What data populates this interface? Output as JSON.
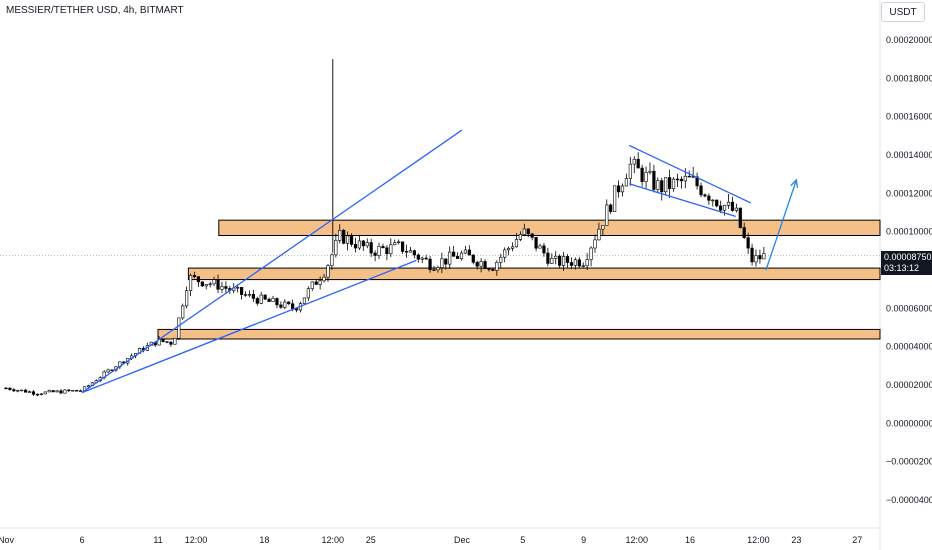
{
  "title": "MESSIER/TETHER USD, 4h, BITMART",
  "currency_label": "USDT",
  "current_price": "0.00008750",
  "countdown": "03:13:12",
  "chart_data": {
    "type": "candlestick",
    "title": "MESSIER/TETHER USD, 4h, BITMART",
    "y_ticks": [
      "0.00020000",
      "0.00018000",
      "0.00016000",
      "0.00014000",
      "0.00012000",
      "0.00010000",
      "0.00008000",
      "0.00006000",
      "0.00004000",
      "0.00002000",
      "0.00000000",
      "−0.00002000",
      "−0.00004000"
    ],
    "y_tick_values": [
      0.0002,
      0.00018,
      0.00016,
      0.00014,
      0.00012,
      0.0001,
      8e-05,
      6e-05,
      4e-05,
      2e-05,
      0,
      -2e-05,
      -4e-05
    ],
    "ylim": [
      -4e-05,
      0.0002
    ],
    "x_ticks": [
      "Nov",
      "6",
      "11",
      "12:00",
      "18",
      "12:00",
      "25",
      "Dec",
      "5",
      "9",
      "12:00",
      "16",
      "12:00",
      "23",
      "27"
    ],
    "x_tick_dates": [
      "2024-11-01",
      "2024-11-06",
      "2024-11-11",
      "2024-11-13T12:00",
      "2024-11-18",
      "2024-11-22T12:00",
      "2024-11-25",
      "2024-12-01",
      "2024-12-05",
      "2024-12-09",
      "2024-12-12T12:00",
      "2024-12-16",
      "2024-12-20T12:00",
      "2024-12-23",
      "2024-12-27"
    ],
    "price_path": [
      [
        "2024-11-01",
        1.84e-05
      ],
      [
        "2024-11-03",
        1.58e-05
      ],
      [
        "2024-11-06",
        1.72e-05
      ],
      [
        "2024-11-08",
        2.9e-05
      ],
      [
        "2024-11-10",
        3.9e-05
      ],
      [
        "2024-11-11",
        4.3e-05
      ],
      [
        "2024-11-12",
        4.2e-05
      ],
      [
        "2024-11-13",
        7.6e-05
      ],
      [
        "2024-11-15",
        7.2e-05
      ],
      [
        "2024-11-17",
        6.6e-05
      ],
      [
        "2024-11-18",
        6.4e-05
      ],
      [
        "2024-11-20",
        6e-05
      ],
      [
        "2024-11-22",
        8e-05
      ],
      [
        "2024-11-23",
        9.8e-05
      ],
      [
        "2024-11-25",
        9e-05
      ],
      [
        "2024-11-27",
        9.2e-05
      ],
      [
        "2024-11-29",
        8.3e-05
      ],
      [
        "2024-12-01",
        8.8e-05
      ],
      [
        "2024-12-03",
        8.2e-05
      ],
      [
        "2024-12-05",
        0.0001
      ],
      [
        "2024-12-07",
        8.4e-05
      ],
      [
        "2024-12-09",
        8.5e-05
      ],
      [
        "2024-12-10",
        0.000102
      ],
      [
        "2024-12-12",
        0.000135
      ],
      [
        "2024-12-14",
        0.000123
      ],
      [
        "2024-12-16",
        0.000127
      ],
      [
        "2024-12-18",
        0.000115
      ],
      [
        "2024-12-19",
        0.00011
      ],
      [
        "2024-12-20",
        8.5e-05
      ],
      [
        "2024-12-21",
        8.75e-05
      ]
    ],
    "wicks": [
      [
        "2024-11-22T12:00",
        0.00019
      ]
    ],
    "zones": [
      {
        "low": 9.8e-05,
        "high": 0.000106,
        "from": "2024-11-15"
      },
      {
        "low": 7.5e-05,
        "high": 8.1e-05,
        "from": "2024-11-13"
      },
      {
        "low": 4.4e-05,
        "high": 4.9e-05,
        "from": "2024-11-11"
      }
    ],
    "trendlines": [
      {
        "from": [
          "2024-11-06",
          1.6e-05
        ],
        "to": [
          "2024-12-01",
          0.000153
        ]
      },
      {
        "from": [
          "2024-11-06",
          1.6e-05
        ],
        "to": [
          "2024-11-28",
          8.5e-05
        ]
      },
      {
        "from": [
          "2024-12-12",
          0.000145
        ],
        "to": [
          "2024-12-20",
          0.000115
        ]
      },
      {
        "from": [
          "2024-12-12",
          0.000125
        ],
        "to": [
          "2024-12-19",
          0.000108
        ]
      }
    ],
    "forecast_arrow": {
      "from": [
        "2024-12-21",
        8e-05
      ],
      "to": [
        "2024-12-23",
        0.000127
      ]
    },
    "current_price_value": 8.75e-05,
    "grid": false,
    "colors": {
      "zone_fill": "#f5c088",
      "zone_stroke": "#000000",
      "trendline": "#2962ff",
      "forecast": "#1e88e5",
      "candle_up": "#ffffff",
      "candle_down": "#000000"
    }
  }
}
